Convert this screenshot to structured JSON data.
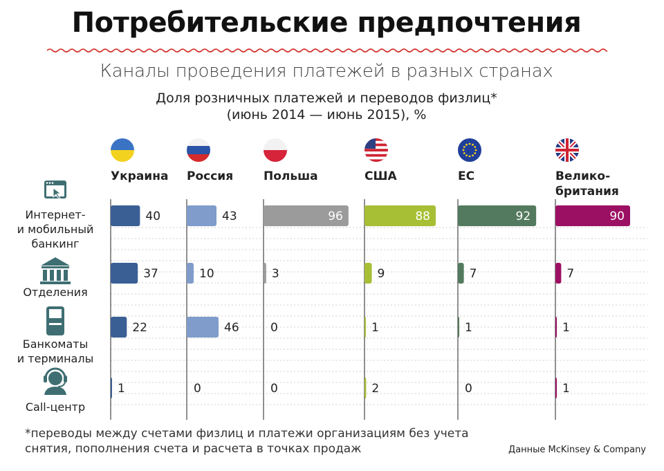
{
  "title": "Потребительские предпочтения",
  "subtitle": "Каналы проведения платежей в разных странах",
  "chart_title_line1": "Доля розничных платежей и переводов физлиц*",
  "chart_title_line2": "(июнь 2014 — июнь 2015), %",
  "footnote_line1": "*переводы между счетами физлиц и платежи организациям без учета",
  "footnote_line2": "снятия, пополнения счета и расчета в точках продаж",
  "source": "Данные McKinsey & Company",
  "chart_data": {
    "type": "bar",
    "title": "Доля розничных платежей и переводов физлиц* (июнь 2014 — июнь 2015), %",
    "xlim": [
      0,
      100
    ],
    "categories": [
      {
        "label_lines": [
          "Интернет-",
          "и мобильный",
          "банкинг"
        ],
        "icon": "browser-cursor-icon"
      },
      {
        "label_lines": [
          "Отделения"
        ],
        "icon": "bank-building-icon"
      },
      {
        "label_lines": [
          "Банкоматы",
          "и терминалы"
        ],
        "icon": "atm-icon"
      },
      {
        "label_lines": [
          "Call-центр"
        ],
        "icon": "headset-operator-icon"
      }
    ],
    "series": [
      {
        "name": "Украина",
        "label_lines": [
          "Украина"
        ],
        "flag": "ukraine-flag-icon",
        "color": "#3a5f94",
        "values": [
          40,
          37,
          22,
          1
        ]
      },
      {
        "name": "Россия",
        "label_lines": [
          "Россия"
        ],
        "flag": "russia-flag-icon",
        "color": "#7f9ccb",
        "values": [
          43,
          10,
          46,
          0
        ]
      },
      {
        "name": "Польша",
        "label_lines": [
          "Польша"
        ],
        "flag": "poland-flag-icon",
        "color": "#9b9b9b",
        "values": [
          96,
          3,
          0,
          0
        ]
      },
      {
        "name": "США",
        "label_lines": [
          "США"
        ],
        "flag": "usa-flag-icon",
        "color": "#a6bf35",
        "values": [
          88,
          9,
          1,
          2
        ]
      },
      {
        "name": "ЕС",
        "label_lines": [
          "ЕС"
        ],
        "flag": "eu-flag-icon",
        "color": "#537a5e",
        "values": [
          92,
          7,
          1,
          0
        ]
      },
      {
        "name": "Великобритания",
        "label_lines": [
          "Велико-",
          "британия"
        ],
        "flag": "uk-flag-icon",
        "color": "#9c1063",
        "values": [
          90,
          7,
          1,
          1
        ]
      }
    ]
  }
}
